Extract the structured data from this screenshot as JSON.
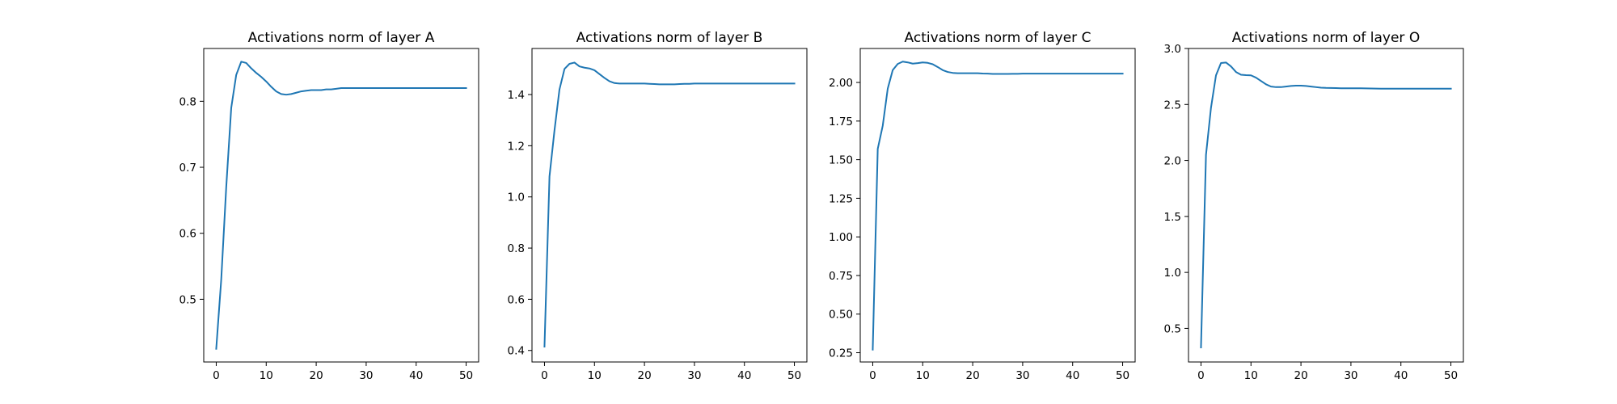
{
  "chart_data": [
    {
      "type": "line",
      "title": "Activations norm of layer A",
      "xlabel": "",
      "ylabel": "",
      "xlim": [
        -2.5,
        52.5
      ],
      "ylim": [
        0.405,
        0.88
      ],
      "xticks": [
        0,
        10,
        20,
        30,
        40,
        50
      ],
      "yticks": [
        0.5,
        0.6,
        0.7,
        0.8
      ],
      "tick_format": "1",
      "grid": false,
      "color": "#1f77b4",
      "x": [
        0,
        1,
        2,
        3,
        4,
        5,
        6,
        7,
        8,
        9,
        10,
        11,
        12,
        13,
        14,
        15,
        16,
        17,
        18,
        19,
        20,
        21,
        22,
        23,
        24,
        25,
        26,
        27,
        28,
        29,
        30,
        31,
        32,
        33,
        34,
        35,
        36,
        37,
        38,
        39,
        40,
        41,
        42,
        43,
        44,
        45,
        46,
        47,
        48,
        49,
        50
      ],
      "y": [
        0.425,
        0.53,
        0.67,
        0.79,
        0.84,
        0.86,
        0.858,
        0.85,
        0.843,
        0.837,
        0.83,
        0.822,
        0.815,
        0.811,
        0.81,
        0.811,
        0.813,
        0.815,
        0.816,
        0.817,
        0.817,
        0.817,
        0.818,
        0.818,
        0.819,
        0.82,
        0.82,
        0.82,
        0.82,
        0.82,
        0.82,
        0.82,
        0.82,
        0.82,
        0.82,
        0.82,
        0.82,
        0.82,
        0.82,
        0.82,
        0.82,
        0.82,
        0.82,
        0.82,
        0.82,
        0.82,
        0.82,
        0.82,
        0.82,
        0.82,
        0.82
      ]
    },
    {
      "type": "line",
      "title": "Activations norm of layer B",
      "xlabel": "",
      "ylabel": "",
      "xlim": [
        -2.5,
        52.5
      ],
      "ylim": [
        0.355,
        1.58
      ],
      "xticks": [
        0,
        10,
        20,
        30,
        40,
        50
      ],
      "yticks": [
        0.4,
        0.6,
        0.8,
        1.0,
        1.2,
        1.4
      ],
      "tick_format": "1",
      "grid": false,
      "color": "#1f77b4",
      "x": [
        0,
        1,
        2,
        3,
        4,
        5,
        6,
        7,
        8,
        9,
        10,
        11,
        12,
        13,
        14,
        15,
        16,
        17,
        18,
        19,
        20,
        21,
        22,
        23,
        24,
        25,
        26,
        27,
        28,
        29,
        30,
        31,
        32,
        33,
        34,
        35,
        36,
        37,
        38,
        39,
        40,
        41,
        42,
        43,
        44,
        45,
        46,
        47,
        48,
        49,
        50
      ],
      "y": [
        0.415,
        1.08,
        1.26,
        1.42,
        1.5,
        1.52,
        1.525,
        1.51,
        1.505,
        1.502,
        1.495,
        1.48,
        1.465,
        1.452,
        1.445,
        1.443,
        1.443,
        1.443,
        1.443,
        1.443,
        1.443,
        1.442,
        1.441,
        1.44,
        1.44,
        1.44,
        1.44,
        1.441,
        1.442,
        1.442,
        1.443,
        1.443,
        1.443,
        1.443,
        1.443,
        1.443,
        1.443,
        1.443,
        1.443,
        1.443,
        1.443,
        1.443,
        1.443,
        1.443,
        1.443,
        1.443,
        1.443,
        1.443,
        1.443,
        1.443,
        1.443
      ]
    },
    {
      "type": "line",
      "title": "Activations norm of layer C",
      "xlabel": "",
      "ylabel": "",
      "xlim": [
        -2.5,
        52.5
      ],
      "ylim": [
        0.19,
        2.22
      ],
      "xticks": [
        0,
        10,
        20,
        30,
        40,
        50
      ],
      "yticks": [
        0.25,
        0.5,
        0.75,
        1.0,
        1.25,
        1.5,
        1.75,
        2.0
      ],
      "tick_format": "2",
      "grid": false,
      "color": "#1f77b4",
      "x": [
        0,
        1,
        2,
        3,
        4,
        5,
        6,
        7,
        8,
        9,
        10,
        11,
        12,
        13,
        14,
        15,
        16,
        17,
        18,
        19,
        20,
        21,
        22,
        23,
        24,
        25,
        26,
        27,
        28,
        29,
        30,
        31,
        32,
        33,
        34,
        35,
        36,
        37,
        38,
        39,
        40,
        41,
        42,
        43,
        44,
        45,
        46,
        47,
        48,
        49,
        50
      ],
      "y": [
        0.27,
        1.57,
        1.72,
        1.96,
        2.08,
        2.12,
        2.135,
        2.13,
        2.122,
        2.125,
        2.13,
        2.127,
        2.118,
        2.1,
        2.08,
        2.068,
        2.062,
        2.06,
        2.06,
        2.06,
        2.06,
        2.06,
        2.058,
        2.057,
        2.055,
        2.055,
        2.055,
        2.055,
        2.056,
        2.056,
        2.057,
        2.057,
        2.057,
        2.057,
        2.057,
        2.057,
        2.057,
        2.057,
        2.057,
        2.057,
        2.057,
        2.057,
        2.057,
        2.057,
        2.057,
        2.057,
        2.057,
        2.057,
        2.057,
        2.057,
        2.057
      ]
    },
    {
      "type": "line",
      "title": "Activations norm of layer O",
      "xlabel": "",
      "ylabel": "",
      "xlim": [
        -2.5,
        52.5
      ],
      "ylim": [
        0.2,
        3.0
      ],
      "xticks": [
        0,
        10,
        20,
        30,
        40,
        50
      ],
      "yticks": [
        0.5,
        1.0,
        1.5,
        2.0,
        2.5,
        3.0
      ],
      "tick_format": "1",
      "grid": false,
      "color": "#1f77b4",
      "x": [
        0,
        1,
        2,
        3,
        4,
        5,
        6,
        7,
        8,
        9,
        10,
        11,
        12,
        13,
        14,
        15,
        16,
        17,
        18,
        19,
        20,
        21,
        22,
        23,
        24,
        25,
        26,
        27,
        28,
        29,
        30,
        31,
        32,
        33,
        34,
        35,
        36,
        37,
        38,
        39,
        40,
        41,
        42,
        43,
        44,
        45,
        46,
        47,
        48,
        49,
        50
      ],
      "y": [
        0.33,
        2.05,
        2.47,
        2.76,
        2.87,
        2.875,
        2.84,
        2.79,
        2.765,
        2.762,
        2.76,
        2.74,
        2.71,
        2.68,
        2.66,
        2.655,
        2.655,
        2.66,
        2.665,
        2.668,
        2.668,
        2.665,
        2.66,
        2.655,
        2.65,
        2.648,
        2.647,
        2.646,
        2.645,
        2.645,
        2.645,
        2.645,
        2.645,
        2.644,
        2.643,
        2.642,
        2.641,
        2.641,
        2.641,
        2.641,
        2.641,
        2.641,
        2.641,
        2.641,
        2.641,
        2.641,
        2.641,
        2.641,
        2.641,
        2.641,
        2.641
      ]
    }
  ]
}
